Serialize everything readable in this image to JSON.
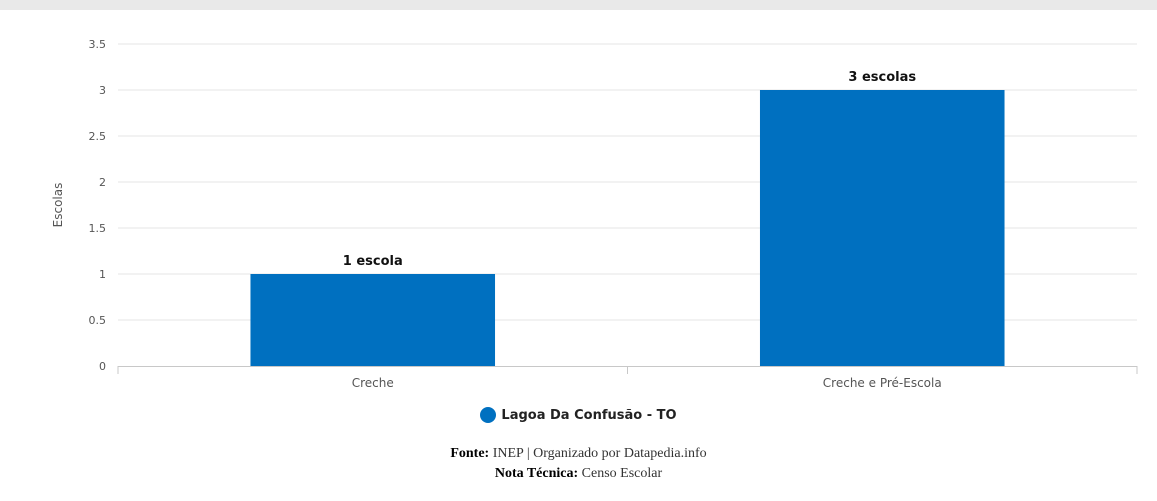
{
  "colors": {
    "bar": "#0070c0",
    "grid": "#e6e6e6",
    "axis": "#c8c8c8"
  },
  "chart_data": {
    "type": "bar",
    "categories": [
      "Creche",
      "Creche e Pré-Escola"
    ],
    "series": [
      {
        "name": "Lagoa Da Confusão - TO",
        "values": [
          1,
          3
        ],
        "data_labels": [
          "1 escola",
          "3 escolas"
        ]
      }
    ],
    "ylabel": "Escolas",
    "xlabel": "",
    "ylim": [
      0,
      3.5
    ],
    "yticks": [
      "0",
      "0.5",
      "1",
      "1.5",
      "2",
      "2.5",
      "3",
      "3.5"
    ],
    "grid": true,
    "legend_placement": "bottom-center"
  },
  "credits": {
    "source_label": "Fonte:",
    "source_text": "INEP | Organizado por Datapedia.info",
    "note_label": "Nota Técnica:",
    "note_text": "Censo Escolar"
  }
}
